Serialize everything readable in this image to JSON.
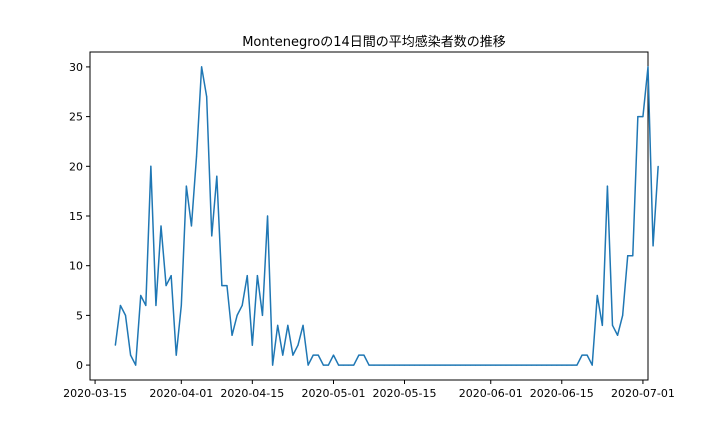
{
  "chart_data": {
    "type": "line",
    "title": "Montenegroの14日間の平均感染者数の推移",
    "xlabel": "",
    "ylabel": "",
    "line_color": "#1f77b4",
    "start_date": "2020-03-19",
    "x_ticks": [
      "2020-03-15",
      "2020-04-01",
      "2020-04-15",
      "2020-05-01",
      "2020-05-15",
      "2020-06-01",
      "2020-06-15",
      "2020-07-01"
    ],
    "y_ticks": [
      "0",
      "5",
      "10",
      "15",
      "20",
      "25",
      "30"
    ],
    "xlim": [
      "2020-03-14",
      "2020-07-02"
    ],
    "ylim": [
      -1.5,
      31.5
    ],
    "grid": false,
    "series": [
      {
        "values": [
          2,
          6,
          5,
          1,
          0,
          7,
          6,
          20,
          6,
          14,
          8,
          9,
          1,
          6,
          18,
          14,
          21,
          30,
          27,
          13,
          19,
          8,
          8,
          3,
          5,
          6,
          9,
          2,
          9,
          5,
          15,
          0,
          4,
          1,
          4,
          1,
          2,
          4,
          0,
          1,
          1,
          0,
          0,
          1,
          0,
          0,
          0,
          0,
          1,
          1,
          0,
          0,
          0,
          0,
          0,
          0,
          0,
          0,
          0,
          0,
          0,
          0,
          0,
          0,
          0,
          0,
          0,
          0,
          0,
          0,
          0,
          0,
          0,
          0,
          0,
          0,
          0,
          0,
          0,
          0,
          0,
          0,
          0,
          0,
          0,
          0,
          0,
          0,
          0,
          0,
          0,
          0,
          1,
          1,
          0,
          7,
          4,
          18,
          4,
          3,
          5,
          11,
          11,
          25,
          25,
          30,
          12,
          20
        ]
      }
    ]
  }
}
